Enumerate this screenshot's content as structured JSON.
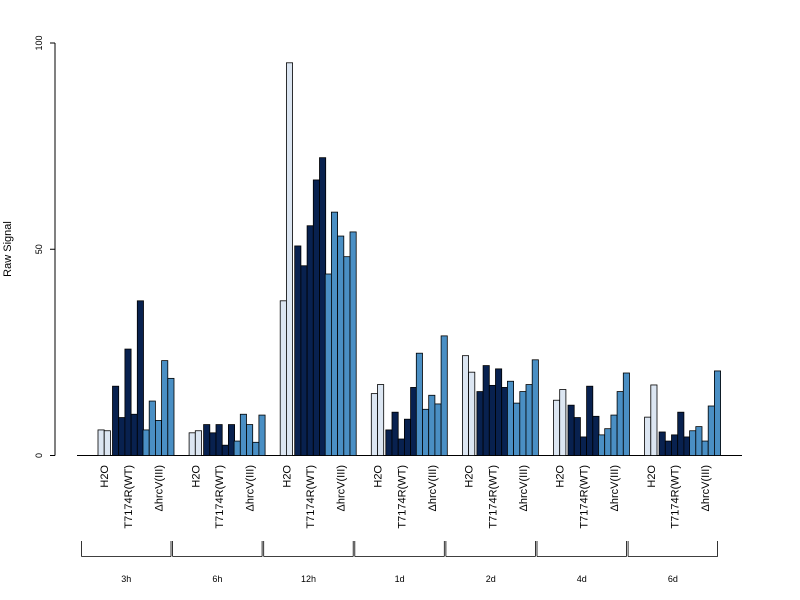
{
  "chart_data": {
    "type": "bar",
    "ylabel": "Raw Signal",
    "ylim": [
      0,
      100
    ],
    "yticks": [
      0,
      50,
      100
    ],
    "category_labels": [
      "H2O",
      "T7174R(WT)",
      "ΔhrcV(III)"
    ],
    "colors": {
      "H2O": "#dce6f2",
      "T7174R(WT)": "#08214f",
      "ΔhrcV(III)": "#4a8fc4"
    },
    "groups": [
      {
        "label": "3h",
        "bars": {
          "H2O": [
            6.2,
            6.0
          ],
          "T7174R(WT)": [
            16.8,
            9.2,
            25.8,
            10.0,
            37.5
          ],
          "ΔhrcV(III)": [
            6.2,
            13.2,
            8.5,
            23.0,
            18.7
          ]
        }
      },
      {
        "label": "6h",
        "bars": {
          "H2O": [
            5.5,
            6.0
          ],
          "T7174R(WT)": [
            7.5,
            5.5,
            7.5,
            2.5,
            7.5
          ],
          "ΔhrcV(III)": [
            3.5,
            10.0,
            7.5,
            3.2,
            9.8
          ]
        }
      },
      {
        "label": "12h",
        "bars": {
          "H2O": [
            37.5,
            95.2
          ],
          "T7174R(WT)": [
            50.8,
            46.0,
            55.7,
            66.8,
            72.2
          ],
          "ΔhrcV(III)": [
            44.0,
            59.0,
            53.2,
            48.2,
            54.2
          ]
        }
      },
      {
        "label": "1d",
        "bars": {
          "H2O": [
            15.0,
            17.2
          ],
          "T7174R(WT)": [
            6.2,
            10.5,
            4.0,
            8.8,
            16.5
          ],
          "ΔhrcV(III)": [
            24.8,
            11.2,
            14.6,
            12.5,
            29.0
          ]
        }
      },
      {
        "label": "2d",
        "bars": {
          "H2O": [
            24.2,
            20.2
          ],
          "T7174R(WT)": [
            15.5,
            21.8,
            17.0,
            21.0,
            16.5
          ],
          "ΔhrcV(III)": [
            18.0,
            12.7,
            15.5,
            17.2,
            23.2
          ]
        }
      },
      {
        "label": "4d",
        "bars": {
          "H2O": [
            13.4,
            16.0
          ],
          "T7174R(WT)": [
            12.2,
            9.2,
            4.5,
            16.8,
            9.5
          ],
          "ΔhrcV(III)": [
            5.0,
            6.5,
            9.8,
            15.5,
            20.0
          ]
        }
      },
      {
        "label": "6d",
        "bars": {
          "H2O": [
            9.3,
            17.1
          ],
          "T7174R(WT)": [
            5.7,
            3.5,
            5.0,
            10.5,
            4.5
          ],
          "ΔhrcV(III)": [
            6.0,
            7.0,
            3.5,
            12.0,
            20.5
          ]
        }
      }
    ]
  }
}
